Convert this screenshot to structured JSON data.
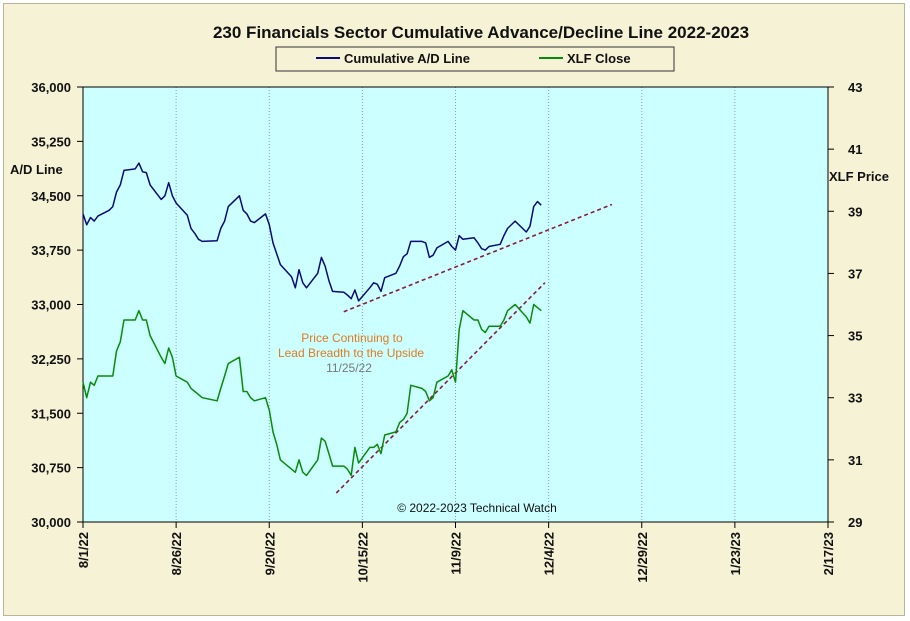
{
  "chart_data": {
    "type": "line",
    "title": "230 Financials  Sector Cumulative  Advance/Decline  Line 2022-2023",
    "ylabel_left": "A/D Line",
    "ylabel_right": "XLF Price",
    "ylim_left": [
      30000,
      36000
    ],
    "ylim_right": [
      29,
      43
    ],
    "yticks_left": [
      "30,000",
      "30,750",
      "31,500",
      "32,250",
      "33,000",
      "33,750",
      "34,500",
      "35,250",
      "36,000"
    ],
    "yticks_right": [
      "29",
      "31",
      "33",
      "35",
      "37",
      "39",
      "41",
      "43"
    ],
    "xlim": [
      "2022-08-01",
      "2023-02-17"
    ],
    "xticks": [
      "8/1/22",
      "8/26/22",
      "9/20/22",
      "10/15/22",
      "11/9/22",
      "12/4/22",
      "12/29/22",
      "1/23/23",
      "2/17/23"
    ],
    "legend": {
      "placement": "top-center",
      "entries": [
        "Cumulative A/D Line",
        "XLF Close"
      ]
    },
    "colors": {
      "ad": "#0a0a78",
      "xlf": "#0a8a0a",
      "trend": "#8b1a3a",
      "plot_bg": "#ccffff",
      "frame_bg": "#f6f2d6"
    },
    "series": [
      {
        "name": "Cumulative A/D Line",
        "axis": "left",
        "points": [
          [
            "2022-08-01",
            34250
          ],
          [
            "2022-08-02",
            34100
          ],
          [
            "2022-08-03",
            34200
          ],
          [
            "2022-08-04",
            34150
          ],
          [
            "2022-08-05",
            34220
          ],
          [
            "2022-08-08",
            34300
          ],
          [
            "2022-08-09",
            34350
          ],
          [
            "2022-08-10",
            34550
          ],
          [
            "2022-08-11",
            34650
          ],
          [
            "2022-08-12",
            34850
          ],
          [
            "2022-08-15",
            34870
          ],
          [
            "2022-08-16",
            34950
          ],
          [
            "2022-08-17",
            34830
          ],
          [
            "2022-08-18",
            34820
          ],
          [
            "2022-08-19",
            34650
          ],
          [
            "2022-08-22",
            34450
          ],
          [
            "2022-08-23",
            34500
          ],
          [
            "2022-08-24",
            34680
          ],
          [
            "2022-08-25",
            34500
          ],
          [
            "2022-08-26",
            34400
          ],
          [
            "2022-08-29",
            34230
          ],
          [
            "2022-08-30",
            34050
          ],
          [
            "2022-08-31",
            33980
          ],
          [
            "2022-09-01",
            33900
          ],
          [
            "2022-09-02",
            33870
          ],
          [
            "2022-09-06",
            33880
          ],
          [
            "2022-09-07",
            34050
          ],
          [
            "2022-09-08",
            34150
          ],
          [
            "2022-09-09",
            34350
          ],
          [
            "2022-09-12",
            34500
          ],
          [
            "2022-09-13",
            34300
          ],
          [
            "2022-09-14",
            34250
          ],
          [
            "2022-09-15",
            34150
          ],
          [
            "2022-09-16",
            34130
          ],
          [
            "2022-09-19",
            34250
          ],
          [
            "2022-09-20",
            34100
          ],
          [
            "2022-09-21",
            33850
          ],
          [
            "2022-09-22",
            33700
          ],
          [
            "2022-09-23",
            33550
          ],
          [
            "2022-09-26",
            33380
          ],
          [
            "2022-09-27",
            33230
          ],
          [
            "2022-09-28",
            33480
          ],
          [
            "2022-09-29",
            33300
          ],
          [
            "2022-09-30",
            33230
          ],
          [
            "2022-10-03",
            33430
          ],
          [
            "2022-10-04",
            33650
          ],
          [
            "2022-10-05",
            33530
          ],
          [
            "2022-10-06",
            33330
          ],
          [
            "2022-10-07",
            33180
          ],
          [
            "2022-10-10",
            33170
          ],
          [
            "2022-10-11",
            33130
          ],
          [
            "2022-10-12",
            33080
          ],
          [
            "2022-10-13",
            33200
          ],
          [
            "2022-10-14",
            33050
          ],
          [
            "2022-10-17",
            33230
          ],
          [
            "2022-10-18",
            33300
          ],
          [
            "2022-10-19",
            33280
          ],
          [
            "2022-10-20",
            33180
          ],
          [
            "2022-10-21",
            33370
          ],
          [
            "2022-10-24",
            33430
          ],
          [
            "2022-10-25",
            33530
          ],
          [
            "2022-10-26",
            33660
          ],
          [
            "2022-10-27",
            33700
          ],
          [
            "2022-10-28",
            33870
          ],
          [
            "2022-10-31",
            33870
          ],
          [
            "2022-11-01",
            33850
          ],
          [
            "2022-11-02",
            33650
          ],
          [
            "2022-11-03",
            33680
          ],
          [
            "2022-11-04",
            33780
          ],
          [
            "2022-11-07",
            33870
          ],
          [
            "2022-11-08",
            33800
          ],
          [
            "2022-11-09",
            33750
          ],
          [
            "2022-11-10",
            33950
          ],
          [
            "2022-11-11",
            33900
          ],
          [
            "2022-11-14",
            33920
          ],
          [
            "2022-11-15",
            33850
          ],
          [
            "2022-11-16",
            33770
          ],
          [
            "2022-11-17",
            33750
          ],
          [
            "2022-11-18",
            33800
          ],
          [
            "2022-11-21",
            33830
          ],
          [
            "2022-11-22",
            33950
          ],
          [
            "2022-11-23",
            34050
          ],
          [
            "2022-11-25",
            34150
          ],
          [
            "2022-11-28",
            34000
          ],
          [
            "2022-11-29",
            34080
          ],
          [
            "2022-11-30",
            34350
          ],
          [
            "2022-12-01",
            34420
          ],
          [
            "2022-12-02",
            34370
          ]
        ]
      },
      {
        "name": "XLF Close",
        "axis": "right",
        "points": [
          [
            "2022-08-01",
            33.5
          ],
          [
            "2022-08-02",
            33.0
          ],
          [
            "2022-08-03",
            33.5
          ],
          [
            "2022-08-04",
            33.4
          ],
          [
            "2022-08-05",
            33.7
          ],
          [
            "2022-08-08",
            33.7
          ],
          [
            "2022-08-09",
            33.7
          ],
          [
            "2022-08-10",
            34.5
          ],
          [
            "2022-08-11",
            34.8
          ],
          [
            "2022-08-12",
            35.5
          ],
          [
            "2022-08-15",
            35.5
          ],
          [
            "2022-08-16",
            35.8
          ],
          [
            "2022-08-17",
            35.5
          ],
          [
            "2022-08-18",
            35.5
          ],
          [
            "2022-08-19",
            35.0
          ],
          [
            "2022-08-22",
            34.3
          ],
          [
            "2022-08-23",
            34.1
          ],
          [
            "2022-08-24",
            34.6
          ],
          [
            "2022-08-25",
            34.3
          ],
          [
            "2022-08-26",
            33.7
          ],
          [
            "2022-08-29",
            33.5
          ],
          [
            "2022-08-30",
            33.3
          ],
          [
            "2022-08-31",
            33.2
          ],
          [
            "2022-09-01",
            33.1
          ],
          [
            "2022-09-02",
            33.0
          ],
          [
            "2022-09-06",
            32.9
          ],
          [
            "2022-09-07",
            33.3
          ],
          [
            "2022-09-08",
            33.7
          ],
          [
            "2022-09-09",
            34.1
          ],
          [
            "2022-09-12",
            34.3
          ],
          [
            "2022-09-13",
            33.2
          ],
          [
            "2022-09-14",
            33.2
          ],
          [
            "2022-09-15",
            33.0
          ],
          [
            "2022-09-16",
            32.9
          ],
          [
            "2022-09-19",
            33.0
          ],
          [
            "2022-09-20",
            32.6
          ],
          [
            "2022-09-21",
            31.9
          ],
          [
            "2022-09-22",
            31.5
          ],
          [
            "2022-09-23",
            31.0
          ],
          [
            "2022-09-26",
            30.7
          ],
          [
            "2022-09-27",
            30.6
          ],
          [
            "2022-09-28",
            31.0
          ],
          [
            "2022-09-29",
            30.6
          ],
          [
            "2022-09-30",
            30.5
          ],
          [
            "2022-10-03",
            31.0
          ],
          [
            "2022-10-04",
            31.7
          ],
          [
            "2022-10-05",
            31.6
          ],
          [
            "2022-10-06",
            31.2
          ],
          [
            "2022-10-07",
            30.8
          ],
          [
            "2022-10-10",
            30.8
          ],
          [
            "2022-10-11",
            30.7
          ],
          [
            "2022-10-12",
            30.5
          ],
          [
            "2022-10-13",
            31.4
          ],
          [
            "2022-10-14",
            30.9
          ],
          [
            "2022-10-17",
            31.4
          ],
          [
            "2022-10-18",
            31.4
          ],
          [
            "2022-10-19",
            31.5
          ],
          [
            "2022-10-20",
            31.2
          ],
          [
            "2022-10-21",
            31.8
          ],
          [
            "2022-10-24",
            31.9
          ],
          [
            "2022-10-25",
            32.2
          ],
          [
            "2022-10-26",
            32.3
          ],
          [
            "2022-10-27",
            32.5
          ],
          [
            "2022-10-28",
            33.4
          ],
          [
            "2022-10-31",
            33.3
          ],
          [
            "2022-11-01",
            33.2
          ],
          [
            "2022-11-02",
            32.9
          ],
          [
            "2022-11-03",
            33.0
          ],
          [
            "2022-11-04",
            33.5
          ],
          [
            "2022-11-07",
            33.7
          ],
          [
            "2022-11-08",
            33.9
          ],
          [
            "2022-11-09",
            33.5
          ],
          [
            "2022-11-10",
            35.2
          ],
          [
            "2022-11-11",
            35.8
          ],
          [
            "2022-11-14",
            35.5
          ],
          [
            "2022-11-15",
            35.5
          ],
          [
            "2022-11-16",
            35.2
          ],
          [
            "2022-11-17",
            35.1
          ],
          [
            "2022-11-18",
            35.3
          ],
          [
            "2022-11-21",
            35.3
          ],
          [
            "2022-11-22",
            35.5
          ],
          [
            "2022-11-23",
            35.8
          ],
          [
            "2022-11-25",
            36.0
          ],
          [
            "2022-11-28",
            35.6
          ],
          [
            "2022-11-29",
            35.4
          ],
          [
            "2022-11-30",
            36.0
          ],
          [
            "2022-12-01",
            35.9
          ],
          [
            "2022-12-02",
            35.8
          ]
        ]
      }
    ],
    "trendlines": [
      {
        "axis": "left",
        "from": [
          "2022-10-10",
          32900
        ],
        "to": [
          "2022-12-21",
          34380
        ]
      },
      {
        "axis": "left",
        "from": [
          "2022-10-08",
          30400
        ],
        "to": [
          "2022-12-03",
          33300
        ]
      }
    ],
    "annotation": {
      "line1": "Price Continuing to",
      "line2": "Lead Breadth to the Upside",
      "date": "11/25/22"
    },
    "copyright": "© 2022-2023  Technical Watch"
  }
}
